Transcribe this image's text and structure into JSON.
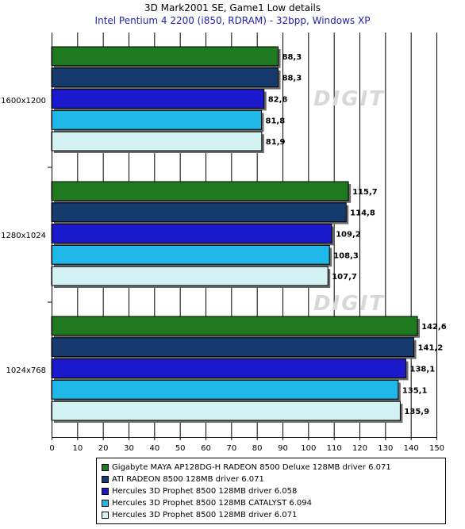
{
  "chart_data": {
    "type": "bar",
    "orientation": "horizontal",
    "title": "3D Mark2001 SE, Game1 Low details",
    "subtitle": "Intel Pentium 4 2200 (i850, RDRAM) - 32bpp, Windows XP",
    "categories": [
      "1600x1200",
      "1280x1024",
      "1024x768"
    ],
    "xlim": [
      0,
      150
    ],
    "xticks": [
      0,
      10,
      20,
      30,
      40,
      50,
      60,
      70,
      80,
      90,
      100,
      110,
      120,
      130,
      140,
      150
    ],
    "grid": true,
    "legend_position": "bottom",
    "series": [
      {
        "name": "Gigabyte MAYA AP128DG-H RADEON 8500 Deluxe 128MB driver 6.071",
        "color": "#1f7a1f",
        "values": [
          88.3,
          115.7,
          142.6
        ],
        "labels": [
          "88,3",
          "115,7",
          "142,6"
        ]
      },
      {
        "name": "ATI RADEON 8500 128MB driver 6.071",
        "color": "#153a6e",
        "values": [
          88.3,
          114.8,
          141.2
        ],
        "labels": [
          "88,3",
          "114,8",
          "141,2"
        ]
      },
      {
        "name": "Hercules 3D Prophet 8500 128MB driver 6.058",
        "color": "#1a1acc",
        "values": [
          82.8,
          109.2,
          138.1
        ],
        "labels": [
          "82,8",
          "109,2",
          "138,1"
        ]
      },
      {
        "name": "Hercules 3D Prophet 8500 128MB CATALYST 6.094",
        "color": "#1fb8e8",
        "values": [
          81.8,
          108.3,
          135.1
        ],
        "labels": [
          "81,8",
          "108,3",
          "135,1"
        ]
      },
      {
        "name": "Hercules 3D Prophet 8500 128MB driver 6.071",
        "color": "#d2f2f4",
        "values": [
          81.9,
          107.7,
          135.9
        ],
        "labels": [
          "81,9",
          "107,7",
          "135,9"
        ]
      }
    ]
  },
  "watermark_text": "DIGIT"
}
